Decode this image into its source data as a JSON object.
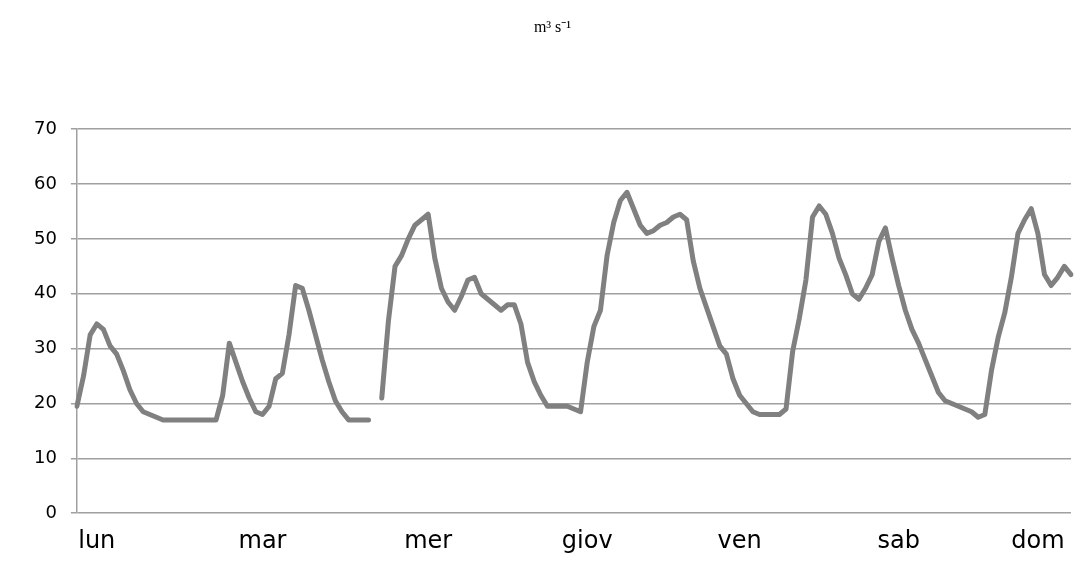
{
  "chart_data": {
    "type": "line",
    "title": "m³ s⁻¹",
    "categories": [
      null,
      null,
      null,
      "lun",
      null,
      null,
      null,
      null,
      null,
      null,
      null,
      null,
      null,
      null,
      null,
      null,
      null,
      null,
      null,
      null,
      null,
      null,
      null,
      null,
      null,
      null,
      null,
      null,
      "mar",
      null,
      null,
      null,
      null,
      null,
      null,
      null,
      null,
      null,
      null,
      null,
      null,
      null,
      null,
      null,
      null,
      null,
      null,
      null,
      null,
      null,
      null,
      null,
      null,
      "mer",
      null,
      null,
      null,
      null,
      null,
      null,
      null,
      null,
      null,
      null,
      null,
      null,
      null,
      null,
      null,
      null,
      null,
      null,
      null,
      null,
      null,
      null,
      null,
      "giov",
      null,
      null,
      null,
      null,
      null,
      null,
      null,
      null,
      null,
      null,
      null,
      null,
      null,
      null,
      null,
      null,
      null,
      null,
      null,
      null,
      null,
      null,
      "ven",
      null,
      null,
      null,
      null,
      null,
      null,
      null,
      null,
      null,
      null,
      null,
      null,
      null,
      null,
      null,
      null,
      null,
      null,
      null,
      null,
      null,
      null,
      null,
      "sab",
      null,
      null,
      null,
      null,
      null,
      null,
      null,
      null,
      null,
      null,
      null,
      null,
      null,
      null,
      null,
      null,
      null,
      null,
      null,
      null,
      "dom",
      null,
      null,
      null,
      null,
      null
    ],
    "series": [
      {
        "color": "#808080",
        "values": [
          19.5,
          25,
          32.5,
          34.5,
          33.5,
          30.5,
          29,
          26,
          22.5,
          20,
          18.5,
          18,
          17.5,
          17,
          17,
          17,
          17,
          17,
          17,
          17,
          17,
          17,
          21.5,
          31,
          27.5,
          24,
          21,
          18.5,
          18,
          19.5,
          24.5,
          25.5,
          32.5,
          41.5,
          41,
          37,
          32.5,
          28,
          24,
          20.5,
          18.5,
          17,
          17,
          17,
          17,
          null,
          21,
          35,
          45,
          47,
          50,
          52.5,
          53.5,
          54.5,
          46.5,
          41,
          38.5,
          37,
          39.5,
          42.5,
          43,
          40,
          39,
          38,
          37,
          38,
          38,
          34.5,
          27.5,
          24,
          21.5,
          19.5,
          19.5,
          19.5,
          19.5,
          19,
          18.5,
          27.5,
          34,
          37,
          47,
          53,
          57,
          58.5,
          55.5,
          52.5,
          51,
          51.5,
          52.5,
          53,
          54,
          54.5,
          53.5,
          46,
          41,
          37.5,
          34,
          30.5,
          29,
          24.5,
          21.5,
          20,
          18.5,
          18,
          18,
          18,
          18,
          19,
          29.5,
          35.5,
          42.5,
          54,
          56,
          54.5,
          51,
          46.5,
          43.5,
          40,
          39,
          41,
          43.5,
          49.5,
          52,
          46.5,
          41.5,
          37,
          33.5,
          31,
          28,
          25,
          22,
          20.5,
          20,
          19.5,
          19,
          18.5,
          17.5,
          18,
          26,
          32,
          36.5,
          43,
          51,
          53.5,
          55.5,
          51,
          43.5,
          41.5,
          43,
          45,
          43.5
        ]
      }
    ],
    "ylim": [
      0,
      70
    ],
    "yticks": [
      0,
      10,
      20,
      30,
      40,
      50,
      60,
      70
    ],
    "grid": "y",
    "marker": "none"
  }
}
